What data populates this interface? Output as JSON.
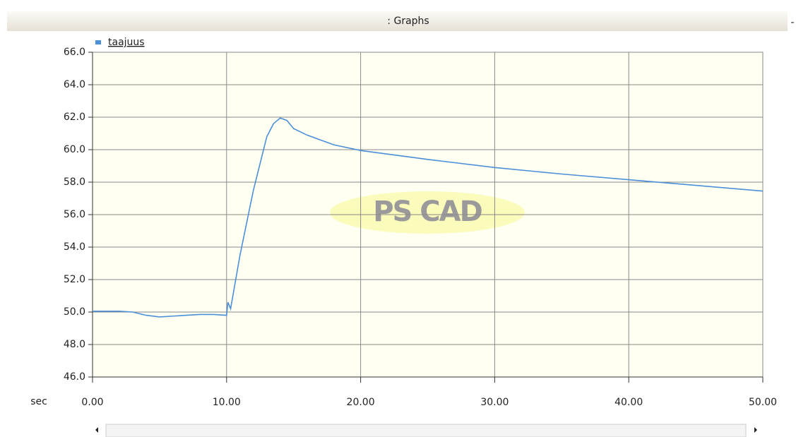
{
  "chart_data": {
    "type": "line",
    "title": ": Graphs",
    "watermark": "PS CAD",
    "xlabel": "sec",
    "x": [
      0,
      2,
      3,
      4,
      5,
      6,
      7,
      8,
      9,
      10,
      10.1,
      10.3,
      11,
      12,
      13,
      13.5,
      14,
      14.5,
      15,
      16,
      17,
      18,
      20,
      25,
      30,
      35,
      40,
      45,
      50
    ],
    "series": [
      {
        "name": "taajuus",
        "color": "#4a8fd8",
        "values": [
          50.05,
          50.05,
          50.0,
          49.8,
          49.7,
          49.75,
          49.8,
          49.85,
          49.85,
          49.8,
          50.6,
          50.2,
          53.5,
          57.5,
          60.8,
          61.6,
          61.95,
          61.8,
          61.3,
          60.9,
          60.6,
          60.3,
          59.95,
          59.4,
          58.9,
          58.5,
          58.15,
          57.8,
          57.45
        ]
      }
    ],
    "xlim": [
      0,
      50
    ],
    "ylim": [
      46,
      66
    ],
    "xticks": [
      {
        "value": 0,
        "label": "0.00"
      },
      {
        "value": 10,
        "label": "10.00"
      },
      {
        "value": 20,
        "label": "20.00"
      },
      {
        "value": 30,
        "label": "30.00"
      },
      {
        "value": 40,
        "label": "40.00"
      },
      {
        "value": 50,
        "label": "50.00"
      }
    ],
    "yticks": [
      {
        "value": 46,
        "label": "46.0"
      },
      {
        "value": 48,
        "label": "48.0"
      },
      {
        "value": 50,
        "label": "50.0"
      },
      {
        "value": 52,
        "label": "52.0"
      },
      {
        "value": 54,
        "label": "54.0"
      },
      {
        "value": 56,
        "label": "56.0"
      },
      {
        "value": 58,
        "label": "58.0"
      },
      {
        "value": 60,
        "label": "60.0"
      },
      {
        "value": 62,
        "label": "62.0"
      },
      {
        "value": 64,
        "label": "64.0"
      },
      {
        "value": 66,
        "label": "66.0"
      }
    ],
    "grid": true,
    "legend": "top-left"
  }
}
